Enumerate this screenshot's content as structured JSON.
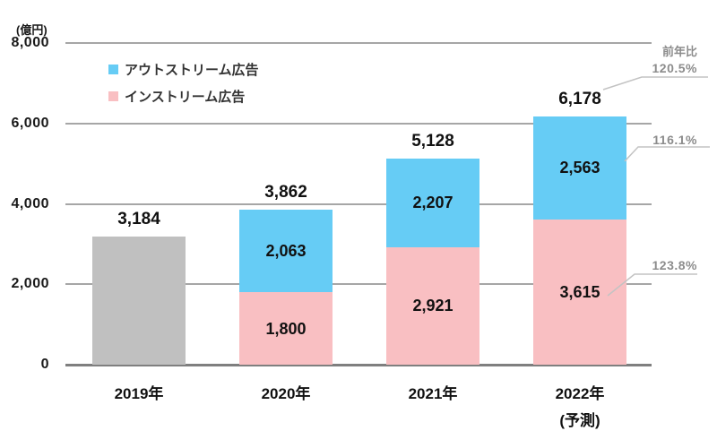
{
  "chart_data": {
    "type": "bar",
    "stacked": true,
    "unit_label": "(億円)",
    "ylim": [
      0,
      8000
    ],
    "yticks": [
      0,
      2000,
      4000,
      6000,
      8000
    ],
    "ytick_labels": [
      "0",
      "2,000",
      "4,000",
      "6,000",
      "8,000"
    ],
    "grid": true,
    "legend_position": "top-left",
    "colors": {
      "outstream_blue": "#66CCF5",
      "instream_pink": "#F9BFC2",
      "neutral_gray": "#C0C0C0",
      "gridline": "#A6A6A6",
      "axis": "#7F7F7F",
      "annotation_text": "#8C8C8C",
      "leader_line": "#C3C3C3"
    },
    "legend": [
      {
        "label": "アウトストリーム広告",
        "color_key": "outstream_blue"
      },
      {
        "label": "インストリーム広告",
        "color_key": "instream_pink"
      }
    ],
    "bars": [
      {
        "category": "2019年",
        "sublabel": "",
        "total": 3184,
        "total_label": "3,184",
        "segments": [
          {
            "name": "",
            "value": 3184,
            "label": "",
            "color_key": "neutral_gray"
          }
        ]
      },
      {
        "category": "2020年",
        "sublabel": "",
        "total": 3862,
        "total_label": "3,862",
        "segments": [
          {
            "name": "インストリーム広告",
            "value": 1800,
            "label": "1,800",
            "color_key": "instream_pink"
          },
          {
            "name": "アウトストリーム広告",
            "value": 2063,
            "label": "2,063",
            "color_key": "outstream_blue"
          }
        ]
      },
      {
        "category": "2021年",
        "sublabel": "",
        "total": 5128,
        "total_label": "5,128",
        "segments": [
          {
            "name": "インストリーム広告",
            "value": 2921,
            "label": "2,921",
            "color_key": "instream_pink"
          },
          {
            "name": "アウトストリーム広告",
            "value": 2207,
            "label": "2,207",
            "color_key": "outstream_blue"
          }
        ]
      },
      {
        "category": "2022年",
        "sublabel": "(予測)",
        "total": 6178,
        "total_label": "6,178",
        "segments": [
          {
            "name": "インストリーム広告",
            "value": 3615,
            "label": "3,615",
            "color_key": "instream_pink"
          },
          {
            "name": "アウトストリーム広告",
            "value": 2563,
            "label": "2,563",
            "color_key": "outstream_blue"
          }
        ]
      }
    ],
    "yoy_annotations": {
      "header": "前年比",
      "items": [
        {
          "label": "120.5%",
          "target": "total"
        },
        {
          "label": "116.1%",
          "target": "outstream"
        },
        {
          "label": "123.8%",
          "target": "instream"
        }
      ]
    }
  }
}
